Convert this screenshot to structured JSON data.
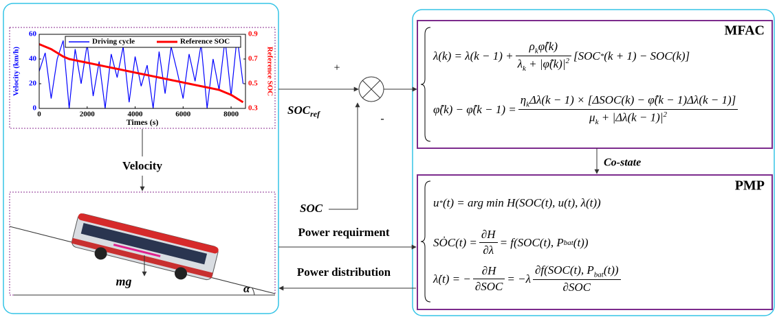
{
  "chart_data": {
    "type": "line",
    "xlabel": "Times (s)",
    "ylabel": "Velocity (km/h)",
    "y2label": "Reference SOC",
    "x": [
      0,
      250,
      500,
      750,
      1000,
      1250,
      1500,
      1750,
      2000,
      2250,
      2500,
      2750,
      3000,
      3250,
      3500,
      3750,
      4000,
      4250,
      4500,
      4750,
      5000,
      5250,
      5500,
      5750,
      6000,
      6250,
      6500,
      6750,
      7000,
      7250,
      7500,
      7750,
      8000,
      8250,
      8500
    ],
    "xlim": [
      0,
      8600
    ],
    "xticks": [
      0,
      2000,
      4000,
      6000,
      8000
    ],
    "ylim": [
      0,
      60
    ],
    "yticks": [
      0,
      20,
      40,
      60
    ],
    "y2lim": [
      0.3,
      0.9
    ],
    "y2ticks": [
      0.3,
      0.5,
      0.7,
      0.9
    ],
    "series": [
      {
        "name": "Driving cycle",
        "color": "#0000ff",
        "values": [
          30,
          45,
          8,
          40,
          55,
          0,
          48,
          20,
          52,
          10,
          38,
          0,
          44,
          25,
          50,
          5,
          42,
          18,
          35,
          0,
          46,
          12,
          50,
          30,
          8,
          44,
          22,
          52,
          0,
          40,
          15,
          56,
          10,
          58,
          20
        ]
      },
      {
        "name": "Reference SOC",
        "color": "#ff0000",
        "axis": "y2",
        "values": [
          0.82,
          0.8,
          0.78,
          0.75,
          0.72,
          0.7,
          0.69,
          0.68,
          0.67,
          0.66,
          0.65,
          0.64,
          0.63,
          0.62,
          0.61,
          0.6,
          0.59,
          0.58,
          0.57,
          0.56,
          0.55,
          0.54,
          0.53,
          0.52,
          0.51,
          0.5,
          0.49,
          0.48,
          0.47,
          0.46,
          0.45,
          0.43,
          0.41,
          0.38,
          0.35
        ]
      }
    ]
  },
  "labels": {
    "velocity": "Velocity",
    "plus": "+",
    "minus": "-",
    "soc_ref": {
      "main": "SOC",
      "sub": "ref"
    },
    "soc": "SOC",
    "power_requirement": "Power requirment",
    "power_distribution": "Power distribution",
    "costate": "Co-state",
    "mg": "mg",
    "alpha": "α"
  },
  "mfac": {
    "title": "MFAC",
    "equations": [
      {
        "parts": [
          "λ(k) = λ(k − 1) + ",
          {
            "num": [
              "ρ",
              {
                "sub": "k"
              },
              "φ̂(k)"
            ],
            "den": [
              "λ",
              {
                "sub": "k"
              },
              " + |φ̂(k)|",
              {
                "sup": "2"
              }
            ]
          },
          "[SOC",
          {
            "sup": "*"
          },
          "(k + 1) − SOC(k)]"
        ]
      },
      {
        "parts": [
          "φ̂(k) − φ̂(k − 1) = ",
          {
            "num": [
              "η",
              {
                "sub": "k"
              },
              "Δλ(k − 1) × [ΔSOC(k) − φ̂(k − 1)Δλ(k − 1)]"
            ],
            "den": [
              "μ",
              {
                "sub": "k"
              },
              " + |Δλ(k − 1)|",
              {
                "sup": "2"
              }
            ]
          }
        ]
      }
    ]
  },
  "pmp": {
    "title": "PMP",
    "equations": [
      {
        "parts": [
          "u",
          {
            "sup": "*"
          },
          "(t) = arg min H(SOC(t), u(t), λ(t))"
        ]
      },
      {
        "parts": [
          "SȮC(t) = ",
          {
            "num": [
              "∂H"
            ],
            "den": [
              "∂λ"
            ]
          },
          " = f(SOC(t), P",
          {
            "sub": "bat"
          },
          "(t))"
        ]
      },
      {
        "parts": [
          "λ̇(t) = −",
          {
            "num": [
              "∂H"
            ],
            "den": [
              "∂SOC"
            ]
          },
          " = −λ",
          {
            "num": [
              "∂f(SOC(t), P",
              {
                "sub": "bat"
              },
              "(t))"
            ],
            "den": [
              "∂SOC"
            ]
          }
        ]
      }
    ]
  }
}
